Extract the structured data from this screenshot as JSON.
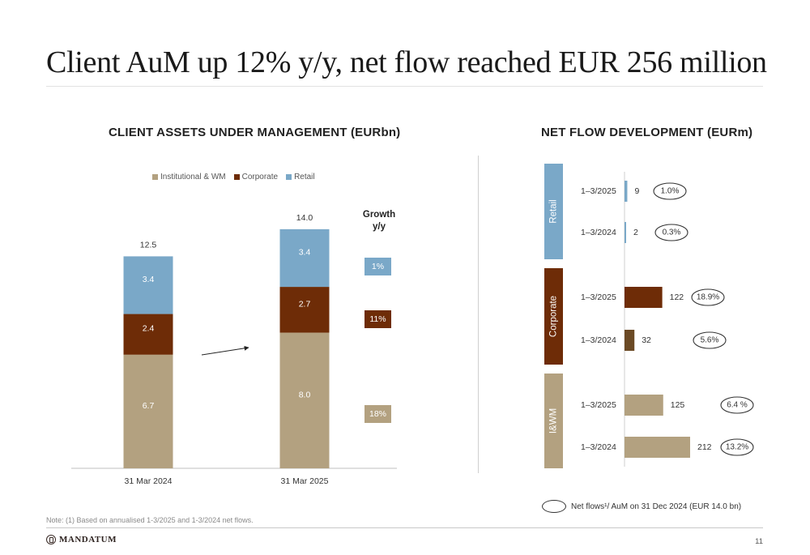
{
  "page": {
    "title": "Client AuM up 12%  y/y, net flow reached EUR 256 million",
    "footnote": "Note: (1) Based on annualised 1-3/2025 and 1-3/2024 net flows.",
    "logo": "MANDATUM",
    "page_number": "11"
  },
  "colors": {
    "inst_wm": "#b3a180",
    "corporate": "#6e2c07",
    "corporate_dark": "#6b4a25",
    "retail": "#7aa8c8"
  },
  "chart_data": [
    {
      "type": "bar",
      "stacked": true,
      "title": "CLIENT ASSETS UNDER MANAGEMENT (EURbn)",
      "categories": [
        "31 Mar 2024",
        "31 Mar 2025"
      ],
      "series": [
        {
          "name": "Institutional & WM",
          "values": [
            6.7,
            8.0
          ],
          "value_labels": [
            "6.7",
            "8.0"
          ],
          "growth": "18%",
          "color": "#b3a180"
        },
        {
          "name": "Corporate",
          "values": [
            2.4,
            2.7
          ],
          "value_labels": [
            "2.4",
            "2.7"
          ],
          "growth": "11%",
          "color": "#6e2c07"
        },
        {
          "name": "Retail",
          "values": [
            3.4,
            3.4
          ],
          "value_labels": [
            "3.4",
            "3.4"
          ],
          "growth": "1%",
          "color": "#7aa8c8"
        }
      ],
      "totals": [
        12.5,
        14.0
      ],
      "total_labels": [
        "12.5",
        "14.0"
      ],
      "growth_header": [
        "Growth",
        "y/y"
      ],
      "legend_position": "top",
      "ylim": [
        0,
        14.0
      ],
      "grid": false
    },
    {
      "type": "bar",
      "orientation": "horizontal",
      "title": "NET FLOW DEVELOPMENT (EURm)",
      "groups": [
        {
          "name": "Retail",
          "color": "#7aa8c8",
          "rows": [
            {
              "period": "1–3/2025",
              "value": 9,
              "label": "9",
              "ratio": "1.0%",
              "color": "#7aa8c8"
            },
            {
              "period": "1–3/2024",
              "value": 2,
              "label": "2",
              "ratio": "0.3%",
              "color": "#7aa8c8"
            }
          ]
        },
        {
          "name": "Corporate",
          "color": "#6e2c07",
          "rows": [
            {
              "period": "1–3/2025",
              "value": 122,
              "label": "122",
              "ratio": "18.9%",
              "color": "#6e2c07"
            },
            {
              "period": "1–3/2024",
              "value": 32,
              "label": "32",
              "ratio": "5.6%",
              "color": "#6b4a25"
            }
          ]
        },
        {
          "name": "I&WM",
          "color": "#b3a180",
          "rows": [
            {
              "period": "1–3/2025",
              "value": 125,
              "label": "125",
              "ratio": "6.4 %",
              "color": "#b3a180"
            },
            {
              "period": "1–3/2024",
              "value": 212,
              "label": "212",
              "ratio": "13.2%",
              "color": "#b3a180"
            }
          ]
        }
      ],
      "xlim": [
        0,
        212
      ],
      "legend_text": "Net flows¹/ AuM on 31 Dec 2024 (EUR 14.0 bn)"
    }
  ]
}
